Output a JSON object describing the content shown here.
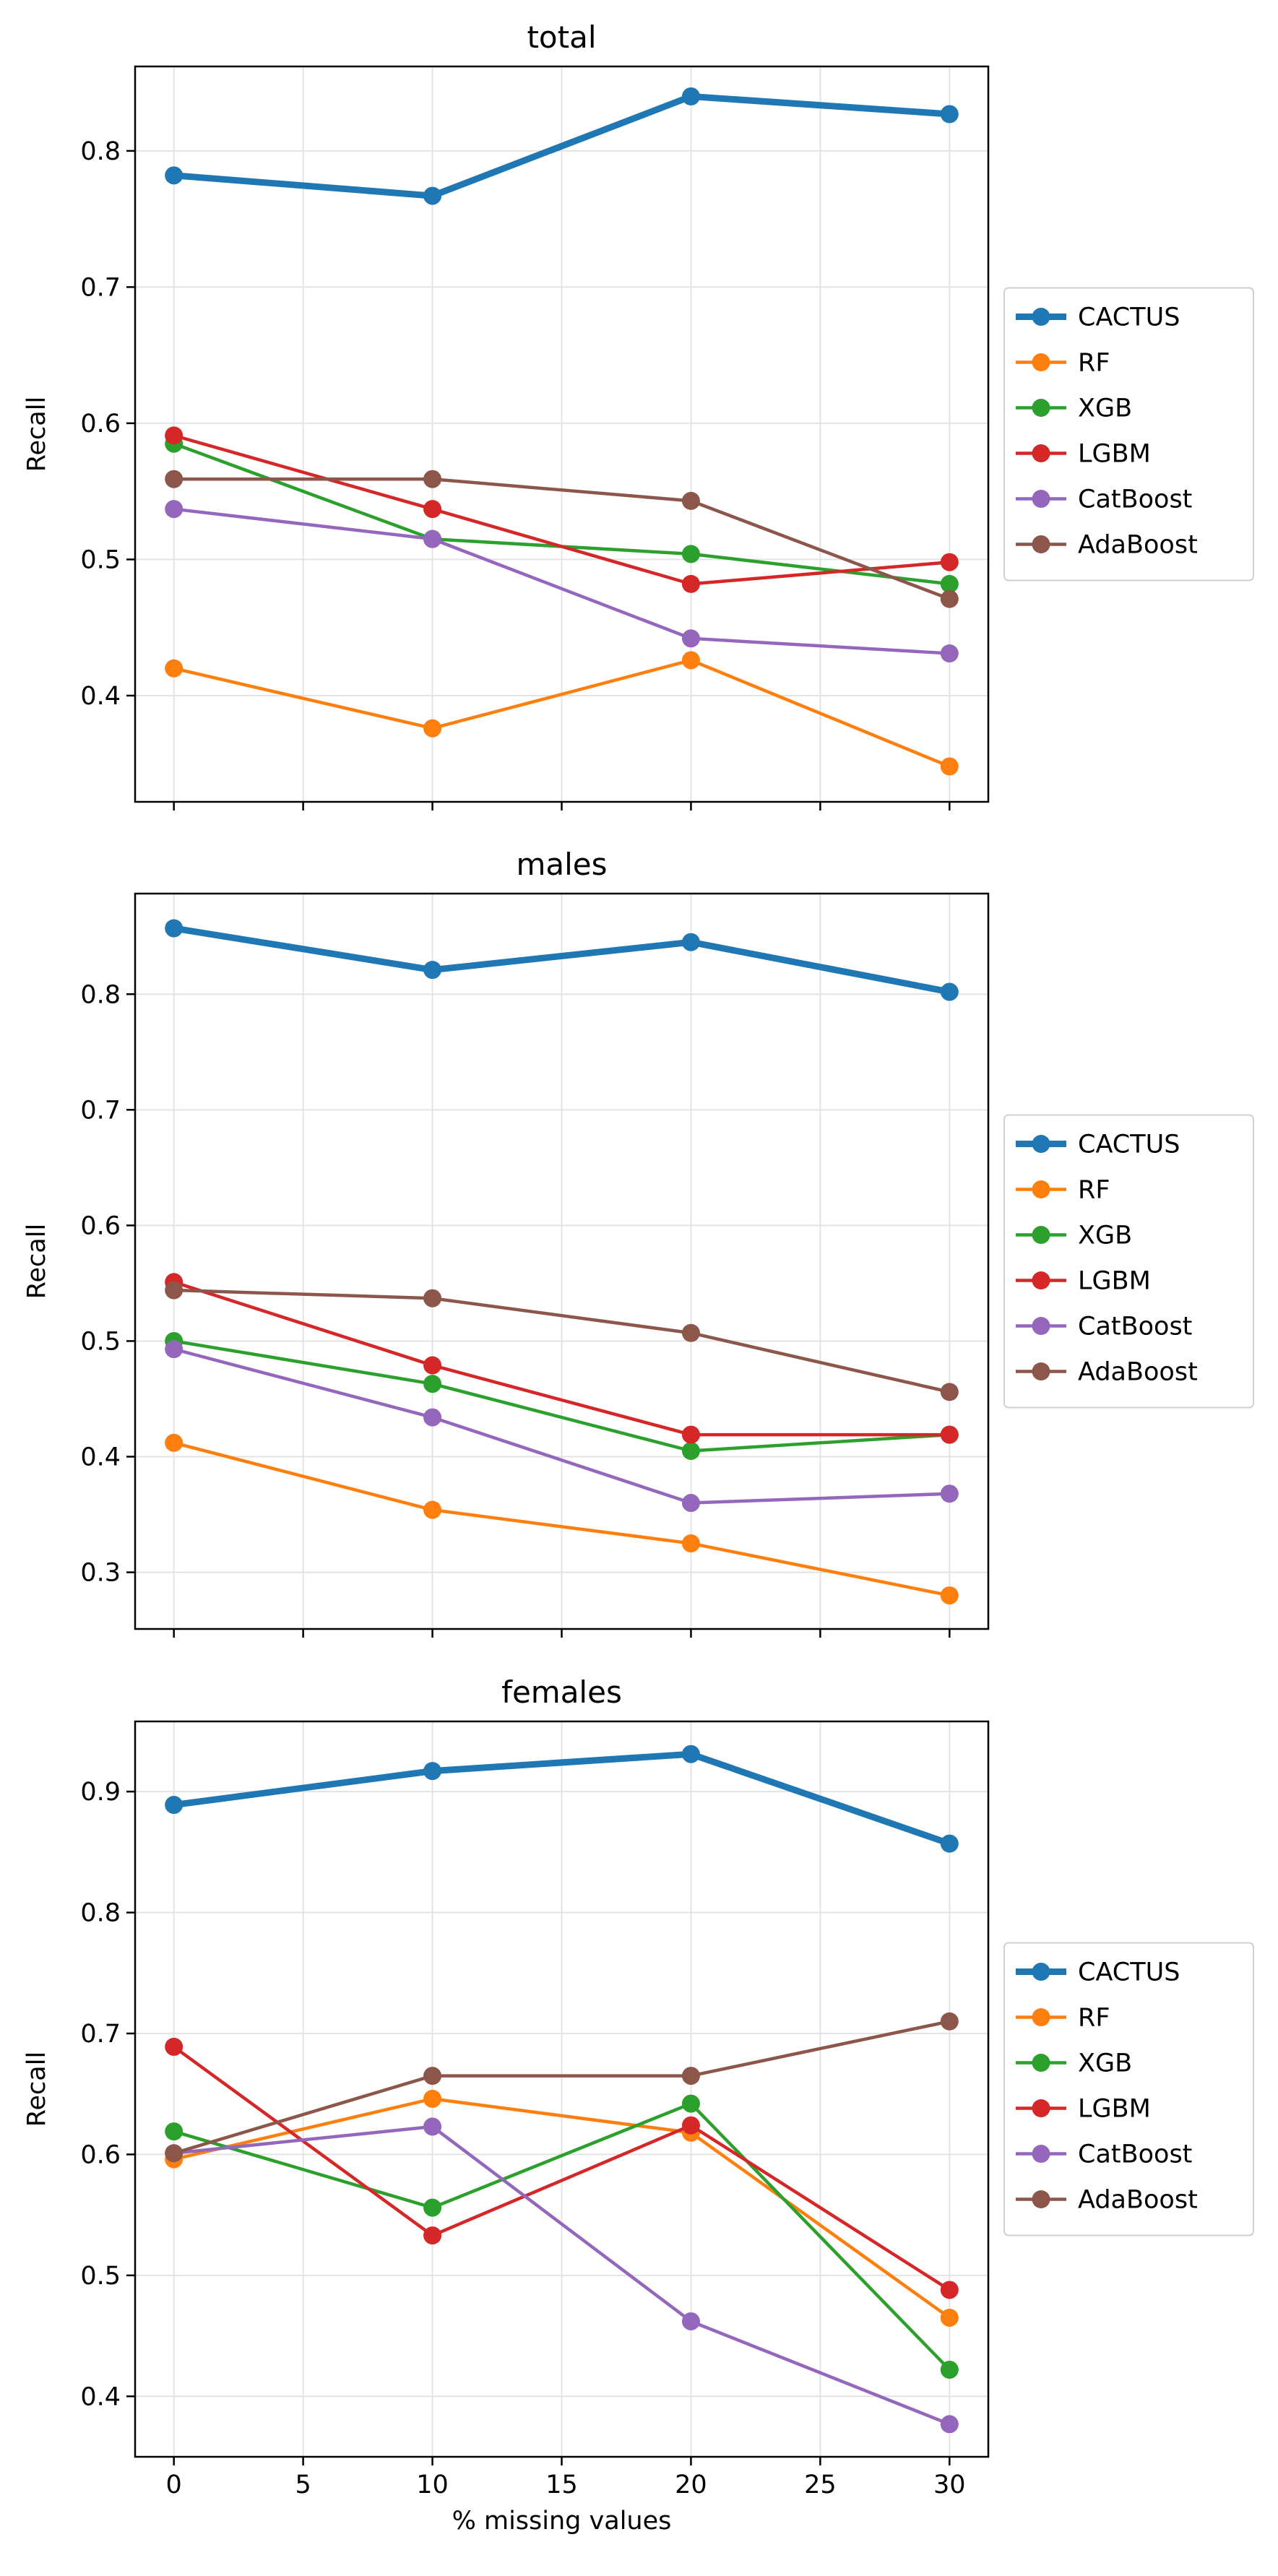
{
  "chart_data": [
    {
      "type": "line",
      "title": "total",
      "ylabel": "Recall",
      "xlabel": "",
      "x": [
        0,
        10,
        20,
        30
      ],
      "xlim": [
        -1.5,
        31.5
      ],
      "ylim": [
        0.322,
        0.862
      ],
      "xticks": [
        "0",
        "5",
        "10",
        "15",
        "20",
        "25",
        "30"
      ],
      "yticks": [
        "0.4",
        "0.5",
        "0.6",
        "0.7",
        "0.8"
      ],
      "grid": true,
      "legend": "right",
      "series": [
        {
          "name": "CACTUS",
          "color": "#1f77b4",
          "values": [
            0.782,
            0.767,
            0.84,
            0.827
          ]
        },
        {
          "name": "RF",
          "color": "#ff7f0e",
          "values": [
            0.42,
            0.376,
            0.426,
            0.348
          ]
        },
        {
          "name": "XGB",
          "color": "#2ca02c",
          "values": [
            0.585,
            0.515,
            0.504,
            0.482
          ]
        },
        {
          "name": "LGBM",
          "color": "#d62728",
          "values": [
            0.591,
            0.537,
            0.482,
            0.498
          ]
        },
        {
          "name": "CatBoost",
          "color": "#9467bd",
          "values": [
            0.537,
            0.515,
            0.442,
            0.431
          ]
        },
        {
          "name": "AdaBoost",
          "color": "#8c564b",
          "values": [
            0.559,
            0.559,
            0.543,
            0.471
          ]
        }
      ]
    },
    {
      "type": "line",
      "title": "males",
      "ylabel": "Recall",
      "xlabel": "",
      "x": [
        0,
        10,
        20,
        30
      ],
      "xlim": [
        -1.5,
        31.5
      ],
      "ylim": [
        0.251,
        0.887
      ],
      "xticks": [
        "0",
        "5",
        "10",
        "15",
        "20",
        "25",
        "30"
      ],
      "yticks": [
        "0.3",
        "0.4",
        "0.5",
        "0.6",
        "0.7",
        "0.8"
      ],
      "grid": true,
      "legend": "right",
      "series": [
        {
          "name": "CACTUS",
          "color": "#1f77b4",
          "values": [
            0.857,
            0.821,
            0.845,
            0.802
          ]
        },
        {
          "name": "RF",
          "color": "#ff7f0e",
          "values": [
            0.412,
            0.354,
            0.325,
            0.28
          ]
        },
        {
          "name": "XGB",
          "color": "#2ca02c",
          "values": [
            0.5,
            0.463,
            0.405,
            0.419
          ]
        },
        {
          "name": "LGBM",
          "color": "#d62728",
          "values": [
            0.551,
            0.479,
            0.419,
            0.419
          ]
        },
        {
          "name": "CatBoost",
          "color": "#9467bd",
          "values": [
            0.493,
            0.434,
            0.36,
            0.368
          ]
        },
        {
          "name": "AdaBoost",
          "color": "#8c564b",
          "values": [
            0.544,
            0.537,
            0.507,
            0.456
          ]
        }
      ]
    },
    {
      "type": "line",
      "title": "females",
      "ylabel": "Recall",
      "xlabel": "% missing values",
      "x": [
        0,
        10,
        20,
        30
      ],
      "xlim": [
        -1.5,
        31.5
      ],
      "ylim": [
        0.35,
        0.958
      ],
      "xticks": [
        "0",
        "5",
        "10",
        "15",
        "20",
        "25",
        "30"
      ],
      "yticks": [
        "0.4",
        "0.5",
        "0.6",
        "0.7",
        "0.8",
        "0.9"
      ],
      "grid": true,
      "legend": "right",
      "series": [
        {
          "name": "CACTUS",
          "color": "#1f77b4",
          "values": [
            0.889,
            0.917,
            0.931,
            0.857
          ]
        },
        {
          "name": "RF",
          "color": "#ff7f0e",
          "values": [
            0.596,
            0.646,
            0.618,
            0.465
          ]
        },
        {
          "name": "XGB",
          "color": "#2ca02c",
          "values": [
            0.619,
            0.556,
            0.642,
            0.422
          ]
        },
        {
          "name": "LGBM",
          "color": "#d62728",
          "values": [
            0.689,
            0.533,
            0.624,
            0.488
          ]
        },
        {
          "name": "CatBoost",
          "color": "#9467bd",
          "values": [
            0.601,
            0.623,
            0.462,
            0.377
          ]
        },
        {
          "name": "AdaBoost",
          "color": "#8c564b",
          "values": [
            0.601,
            0.665,
            0.665,
            0.71
          ]
        }
      ]
    }
  ]
}
